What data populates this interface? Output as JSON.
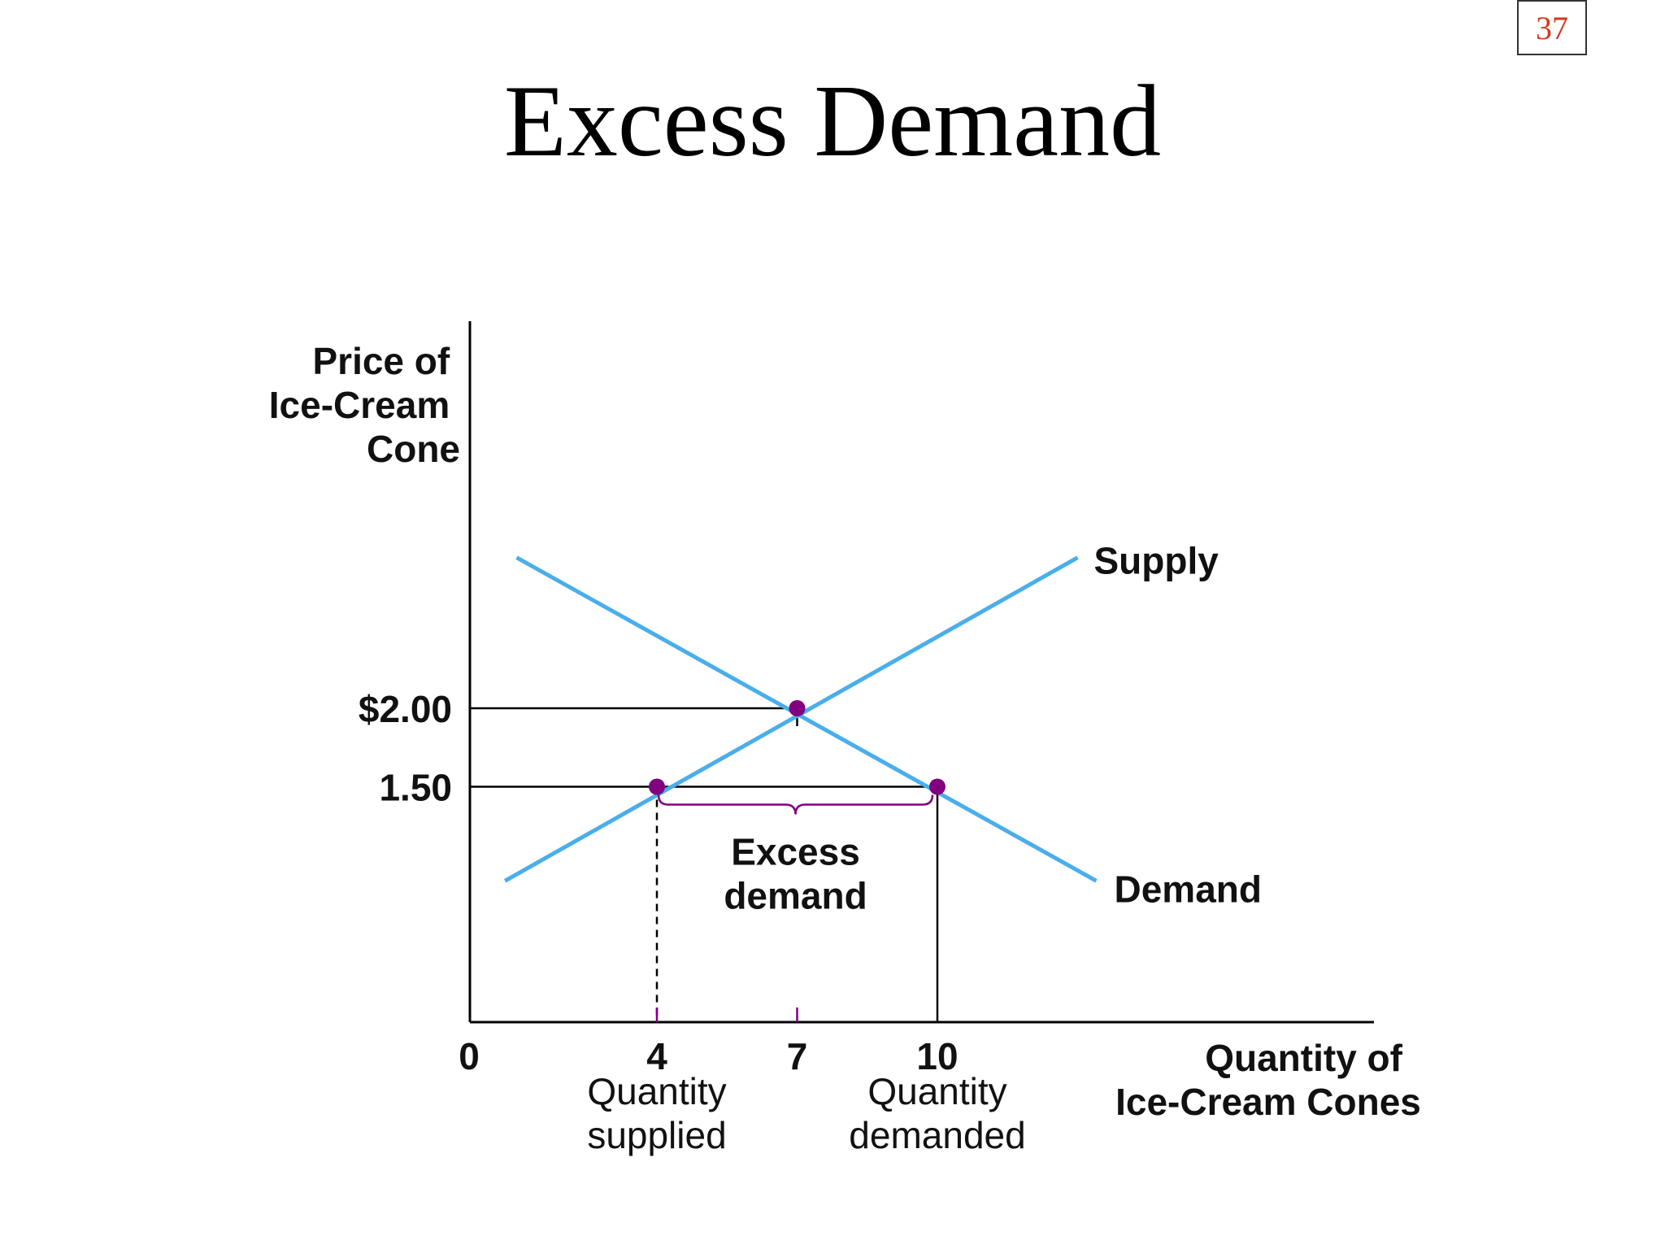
{
  "slide": {
    "page_number": "37",
    "title": "Excess Demand"
  },
  "chart_data": {
    "type": "line",
    "y_axis_label": [
      "Price of",
      "Ice-Cream",
      "Cone"
    ],
    "x_axis_label": [
      "Quantity of",
      "Ice-Cream Cones"
    ],
    "x_origin_label": "0",
    "x_ticks": [
      {
        "value": 4,
        "label": "4",
        "caption": [
          "Quantity",
          "supplied"
        ]
      },
      {
        "value": 7,
        "label": "7",
        "caption": []
      },
      {
        "value": 10,
        "label": "10",
        "caption": [
          "Quantity",
          "demanded"
        ]
      }
    ],
    "y_ticks": [
      {
        "value": 2.0,
        "label": "$2.00"
      },
      {
        "value": 1.5,
        "label": "1.50"
      }
    ],
    "xlim": [
      0,
      19.3
    ],
    "ylim": [
      0,
      4.5
    ],
    "series": [
      {
        "name": "Supply",
        "points": [
          [
            0.75,
            0.9
          ],
          [
            13.0,
            2.96
          ]
        ]
      },
      {
        "name": "Demand",
        "points": [
          [
            1.0,
            2.96
          ],
          [
            13.4,
            0.9
          ]
        ]
      }
    ],
    "points": [
      {
        "x": 7,
        "y": 2.0,
        "role": "equilibrium"
      },
      {
        "x": 4,
        "y": 1.5,
        "role": "quantity-supplied"
      },
      {
        "x": 10,
        "y": 1.5,
        "role": "quantity-demanded"
      }
    ],
    "annotation": {
      "text": [
        "Excess",
        "demand"
      ],
      "from_x": 4,
      "to_x": 10,
      "at_y": 1.5
    },
    "colors": {
      "curve": "#4aaeea",
      "point": "#800080",
      "bracket": "#800080",
      "axis": "#000000"
    }
  }
}
